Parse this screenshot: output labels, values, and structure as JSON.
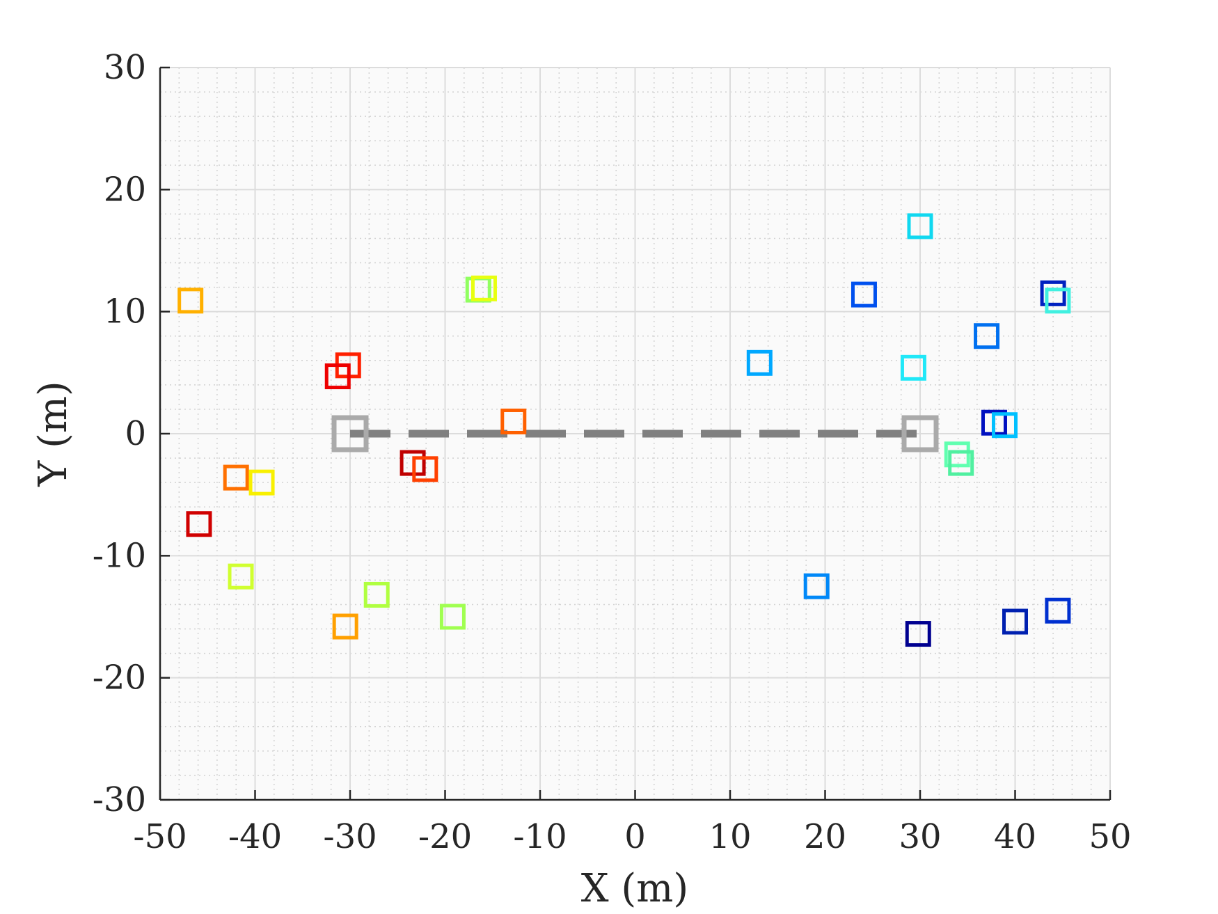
{
  "chart_data": {
    "type": "scatter",
    "title": "",
    "xlabel": "X (m)",
    "ylabel": "Y (m)",
    "xlim": [
      -50,
      50
    ],
    "ylim": [
      -30,
      30
    ],
    "xticks": [
      -50,
      -40,
      -30,
      -20,
      -10,
      0,
      10,
      20,
      30,
      40,
      50
    ],
    "yticks": [
      -30,
      -20,
      -10,
      0,
      10,
      20,
      30
    ],
    "xtick_labels": [
      "-50",
      "-40",
      "-30",
      "-20",
      "-10",
      "0",
      "10",
      "20",
      "30",
      "40",
      "50"
    ],
    "ytick_labels": [
      "-30",
      "-20",
      "-10",
      "0",
      "10",
      "20",
      "30"
    ],
    "grid": true,
    "minor_grid": true,
    "marker": "square",
    "reference_link": {
      "x": [
        -30,
        30
      ],
      "y": [
        0,
        0
      ],
      "line_style": "dashed",
      "color": "#808080",
      "endpoint_color": "#aaaaaa"
    },
    "points": [
      {
        "x": -46.8,
        "y": 10.9,
        "color": "#ffb000"
      },
      {
        "x": -16.5,
        "y": 11.8,
        "color": "#90ff60"
      },
      {
        "x": -15.9,
        "y": 11.9,
        "color": "#e8ff10"
      },
      {
        "x": -30.2,
        "y": 5.6,
        "color": "#ff2000"
      },
      {
        "x": -31.3,
        "y": 4.7,
        "color": "#ee0000"
      },
      {
        "x": -12.8,
        "y": 1.0,
        "color": "#ff6000"
      },
      {
        "x": -42.0,
        "y": -3.6,
        "color": "#ff7000"
      },
      {
        "x": -39.3,
        "y": -4.0,
        "color": "#f8f000"
      },
      {
        "x": -23.4,
        "y": -2.4,
        "color": "#c00000"
      },
      {
        "x": -22.1,
        "y": -2.9,
        "color": "#ff4000"
      },
      {
        "x": -45.9,
        "y": -7.4,
        "color": "#d00000"
      },
      {
        "x": -41.5,
        "y": -11.7,
        "color": "#d0ff30"
      },
      {
        "x": -27.2,
        "y": -13.2,
        "color": "#b0ff40"
      },
      {
        "x": -30.5,
        "y": -15.8,
        "color": "#ffa000"
      },
      {
        "x": -19.2,
        "y": -15.0,
        "color": "#a0ff50"
      },
      {
        "x": 13.1,
        "y": 5.8,
        "color": "#00a8ff"
      },
      {
        "x": 24.1,
        "y": 11.4,
        "color": "#0050ee"
      },
      {
        "x": 30.0,
        "y": 17.0,
        "color": "#10d8f0"
      },
      {
        "x": 29.3,
        "y": 5.4,
        "color": "#20e8f8"
      },
      {
        "x": 44.0,
        "y": 11.5,
        "color": "#0020c0"
      },
      {
        "x": 44.5,
        "y": 10.9,
        "color": "#40f0e0"
      },
      {
        "x": 37.0,
        "y": 8.0,
        "color": "#0070f0"
      },
      {
        "x": 37.8,
        "y": 0.9,
        "color": "#0010c0"
      },
      {
        "x": 38.9,
        "y": 0.7,
        "color": "#00c0ff"
      },
      {
        "x": 33.9,
        "y": -1.7,
        "color": "#60ffb0"
      },
      {
        "x": 34.3,
        "y": -2.4,
        "color": "#50f0a0"
      },
      {
        "x": 19.1,
        "y": -12.5,
        "color": "#0088f8"
      },
      {
        "x": 29.8,
        "y": -16.4,
        "color": "#000090"
      },
      {
        "x": 40.0,
        "y": -15.4,
        "color": "#0020b0"
      },
      {
        "x": 44.5,
        "y": -14.5,
        "color": "#0030d0"
      }
    ]
  }
}
